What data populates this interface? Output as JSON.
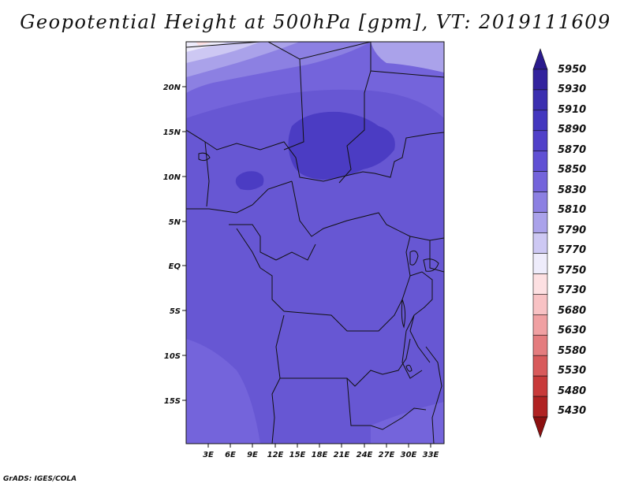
{
  "title": "Geopotential Height at 500hPa [gpm], VT: 2019111609",
  "credit": "GrADS: IGES/COLA",
  "map": {
    "lat_labels": [
      "20N",
      "15N",
      "10N",
      "5N",
      "EQ",
      "5S",
      "10S",
      "15S"
    ],
    "lon_labels": [
      "3E",
      "6E",
      "9E",
      "12E",
      "15E",
      "18E",
      "21E",
      "24E",
      "27E",
      "30E",
      "33E"
    ]
  },
  "colorbar": {
    "levels": [
      "5950",
      "5930",
      "5910",
      "5890",
      "5870",
      "5850",
      "5830",
      "5810",
      "5790",
      "5770",
      "5750",
      "5730",
      "5680",
      "5630",
      "5580",
      "5530",
      "5480",
      "5430"
    ],
    "colors": [
      "#2a1a8c",
      "#33239e",
      "#3b2fb0",
      "#4337bf",
      "#5040c9",
      "#6050d4",
      "#7464db",
      "#8c80e2",
      "#aaa2ea",
      "#cdc8f3",
      "#eeecfb",
      "#fde0e2",
      "#f8c2c4",
      "#f0a0a2",
      "#e47c7e",
      "#d85a5b",
      "#c83a3a",
      "#b02222",
      "#8c1010"
    ]
  }
}
